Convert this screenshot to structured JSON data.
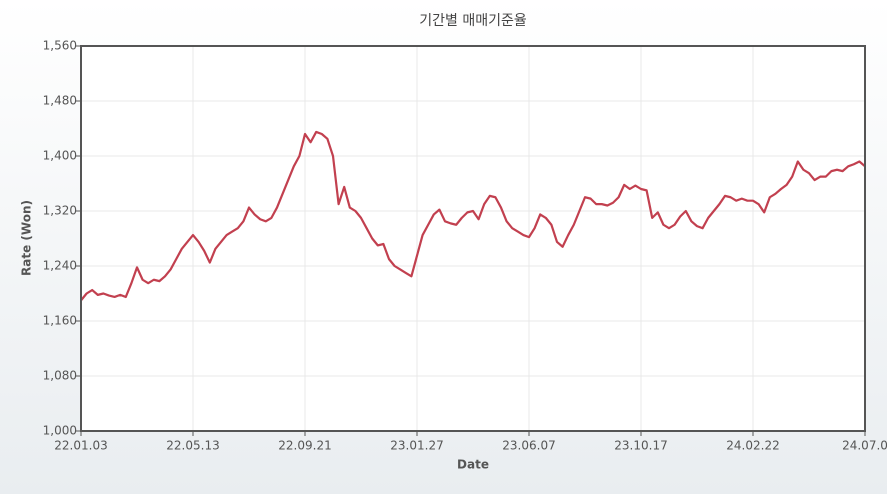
{
  "chart_data": {
    "type": "line",
    "title": "기간별 매매기준율",
    "x_label": "Date",
    "y_label": "Rate (Won)",
    "xlim": [
      0,
      140
    ],
    "xticks": [
      {
        "value": 0,
        "label": "22.01.03"
      },
      {
        "value": 20,
        "label": "22.05.13"
      },
      {
        "value": 40,
        "label": "22.09.21"
      },
      {
        "value": 60,
        "label": "23.01.27"
      },
      {
        "value": 80,
        "label": "23.06.07"
      },
      {
        "value": 100,
        "label": "23.10.17"
      },
      {
        "value": 120,
        "label": "24.02.22"
      },
      {
        "value": 140,
        "label": "24.07.0"
      }
    ],
    "ylim": [
      1000,
      1560
    ],
    "yticks": [
      {
        "value": 1000,
        "label": "1,000"
      },
      {
        "value": 1080,
        "label": "1,080"
      },
      {
        "value": 1160,
        "label": "1,160"
      },
      {
        "value": 1240,
        "label": "1,240"
      },
      {
        "value": 1320,
        "label": "1,320"
      },
      {
        "value": 1400,
        "label": "1,400"
      },
      {
        "value": 1480,
        "label": "1,480"
      },
      {
        "value": 1560,
        "label": "1,560"
      }
    ],
    "grid": true,
    "color": "#c2404f",
    "values": [
      1190,
      1200,
      1205,
      1198,
      1200,
      1197,
      1195,
      1198,
      1195,
      1215,
      1238,
      1220,
      1215,
      1220,
      1218,
      1225,
      1235,
      1250,
      1265,
      1275,
      1285,
      1275,
      1262,
      1245,
      1265,
      1275,
      1285,
      1290,
      1295,
      1305,
      1325,
      1315,
      1308,
      1305,
      1310,
      1325,
      1345,
      1365,
      1385,
      1400,
      1432,
      1420,
      1435,
      1432,
      1425,
      1400,
      1330,
      1355,
      1325,
      1320,
      1310,
      1295,
      1280,
      1270,
      1272,
      1250,
      1240,
      1235,
      1230,
      1225,
      1255,
      1285,
      1300,
      1315,
      1322,
      1305,
      1302,
      1300,
      1310,
      1318,
      1320,
      1308,
      1330,
      1342,
      1340,
      1325,
      1305,
      1295,
      1290,
      1285,
      1282,
      1295,
      1315,
      1310,
      1300,
      1275,
      1268,
      1285,
      1300,
      1320,
      1340,
      1338,
      1330,
      1330,
      1328,
      1332,
      1340,
      1358,
      1352,
      1357,
      1352,
      1350,
      1310,
      1318,
      1300,
      1295,
      1300,
      1312,
      1320,
      1305,
      1298,
      1295,
      1310,
      1320,
      1330,
      1342,
      1340,
      1335,
      1338,
      1335,
      1335,
      1330,
      1318,
      1340,
      1345,
      1352,
      1358,
      1370,
      1392,
      1380,
      1375,
      1365,
      1370,
      1370,
      1378,
      1380,
      1378,
      1385,
      1388,
      1392,
      1385
    ]
  }
}
